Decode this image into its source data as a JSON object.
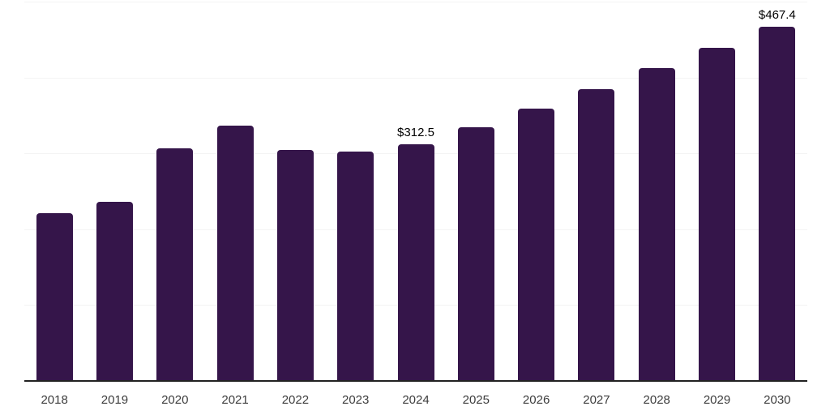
{
  "chart_data": {
    "type": "bar",
    "title": "",
    "xlabel": "",
    "ylabel": "",
    "categories": [
      "2018",
      "2019",
      "2020",
      "2021",
      "2022",
      "2023",
      "2024",
      "2025",
      "2026",
      "2027",
      "2028",
      "2029",
      "2030"
    ],
    "values": [
      221.0,
      236.0,
      306.5,
      336.5,
      304.5,
      302.5,
      312.5,
      334.5,
      359.0,
      384.5,
      412.5,
      439.0,
      467.4
    ],
    "value_prefix": "$",
    "annotations": [
      {
        "category": "2024",
        "text": "$312.5"
      },
      {
        "category": "2030",
        "text": "$467.4"
      }
    ],
    "ylim": [
      0,
      500
    ],
    "gridline_values": [
      100,
      200,
      300,
      400,
      500
    ],
    "grid": "horizontal",
    "legend": "none",
    "colors": {
      "bar": "#35154A",
      "gridline": "#F4F4F4",
      "axis_line": "#222222",
      "tick_label": "#3C3C3C",
      "annotation": "#000000",
      "background": "#FFFFFF"
    }
  }
}
